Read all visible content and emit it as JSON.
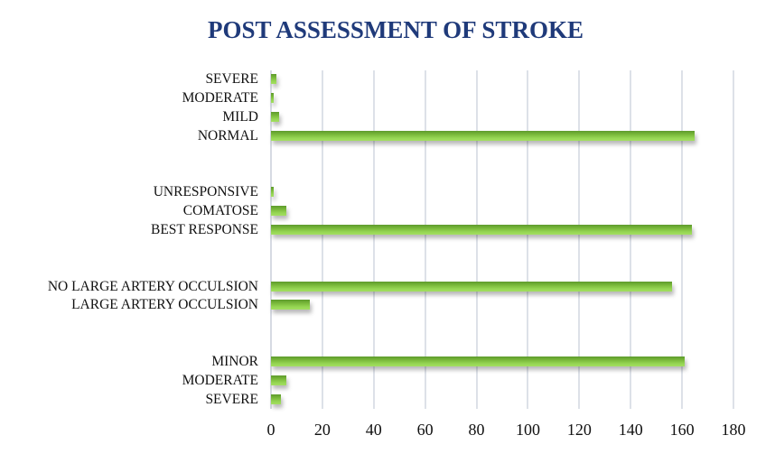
{
  "chart_data": {
    "type": "bar",
    "orientation": "horizontal",
    "title": "POST ASSESSMENT OF STROKE",
    "xlabel": "",
    "ylabel": "",
    "xlim": [
      0,
      180
    ],
    "x_ticks": [
      0,
      20,
      40,
      60,
      80,
      100,
      120,
      140,
      160,
      180
    ],
    "grid": true,
    "legend": null,
    "bar_color": "#92d050",
    "title_color": "#1f3a7a",
    "slots": 18,
    "categories": [
      {
        "label": "SEVERE",
        "value": 2,
        "slot": 0,
        "group": "group-1"
      },
      {
        "label": "MODERATE",
        "value": 1,
        "slot": 1,
        "group": "group-1"
      },
      {
        "label": "MILD",
        "value": 3,
        "slot": 2,
        "group": "group-1"
      },
      {
        "label": "NORMAL",
        "value": 165,
        "slot": 3,
        "group": "group-1"
      },
      {
        "label": "UNRESPONSIVE",
        "value": 1,
        "slot": 6,
        "group": "group-2"
      },
      {
        "label": "COMATOSE",
        "value": 6,
        "slot": 7,
        "group": "group-2"
      },
      {
        "label": "BEST RESPONSE",
        "value": 164,
        "slot": 8,
        "group": "group-2"
      },
      {
        "label": "NO LARGE ARTERY OCCULSION",
        "value": 156,
        "slot": 11,
        "group": "group-3"
      },
      {
        "label": "LARGE ARTERY OCCULSION",
        "value": 15,
        "slot": 12,
        "group": "group-3"
      },
      {
        "label": "MINOR",
        "value": 161,
        "slot": 15,
        "group": "group-4"
      },
      {
        "label": "MODERATE",
        "value": 6,
        "slot": 16,
        "group": "group-4"
      },
      {
        "label": "SEVERE",
        "value": 4,
        "slot": 17,
        "group": "group-4"
      }
    ]
  }
}
